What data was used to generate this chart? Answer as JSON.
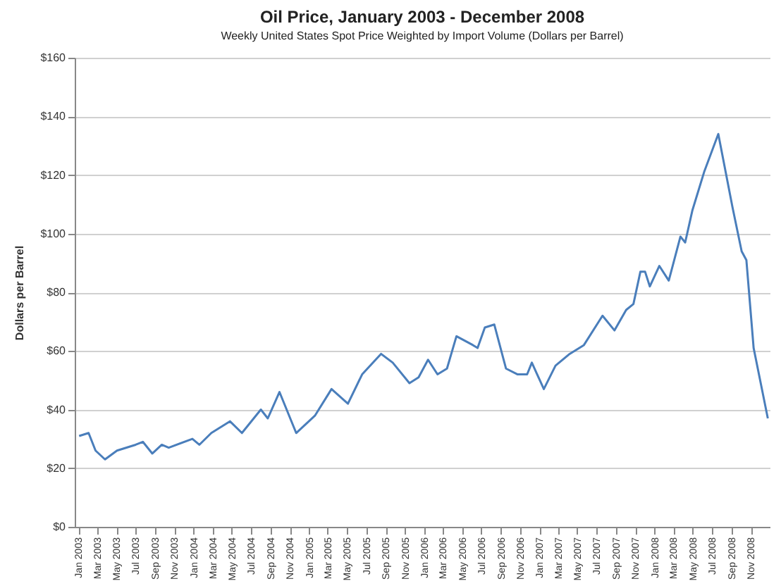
{
  "chart_data": {
    "type": "line",
    "title": "Oil Price, January 2003 - December 2008",
    "subtitle": "Weekly United States Spot Price Weighted by Import Volume (Dollars per Barrel)",
    "ylabel": "Dollars per Barrel",
    "x": [
      "2003-01-03",
      "2003-02-02",
      "2003-02-24",
      "2003-03-26",
      "2003-05-03",
      "2003-07-01",
      "2003-07-24",
      "2003-08-23",
      "2003-09-22",
      "2003-10-14",
      "2003-12-28",
      "2004-01-19",
      "2004-02-26",
      "2004-04-25",
      "2004-06-02",
      "2004-08-01",
      "2004-08-23",
      "2004-09-29",
      "2004-11-21",
      "2005-01-20",
      "2005-03-13",
      "2005-05-04",
      "2005-06-18",
      "2005-08-17",
      "2005-09-23",
      "2005-11-15",
      "2005-12-14",
      "2006-01-13",
      "2006-02-12",
      "2006-03-14",
      "2006-04-13",
      "2006-06-04",
      "2006-06-19",
      "2006-07-12",
      "2006-08-11",
      "2006-09-17",
      "2006-10-24",
      "2006-11-23",
      "2006-12-08",
      "2007-01-15",
      "2007-02-21",
      "2007-04-07",
      "2007-05-22",
      "2007-07-20",
      "2007-08-27",
      "2007-10-03",
      "2007-10-26",
      "2007-11-17",
      "2007-12-02",
      "2007-12-17",
      "2008-01-16",
      "2008-02-15",
      "2008-03-23",
      "2008-04-07",
      "2008-04-30",
      "2008-06-06",
      "2008-07-21",
      "2008-09-04",
      "2008-10-03",
      "2008-10-18",
      "2008-11-10",
      "2008-12-25"
    ],
    "series": [
      {
        "color": "#4a7ebb",
        "values": [
          31,
          32,
          26,
          23,
          26,
          28,
          29,
          25,
          28,
          27,
          30,
          28,
          32,
          36,
          32,
          40,
          37,
          46,
          32,
          38,
          47,
          42,
          52,
          59,
          56,
          49,
          51,
          57,
          52,
          54,
          65,
          62,
          61,
          68,
          69,
          54,
          52,
          52,
          56,
          47,
          55,
          59,
          62,
          72,
          67,
          74,
          76,
          87,
          87,
          82,
          89,
          84,
          99,
          97,
          108,
          121,
          134,
          109,
          94,
          91,
          61,
          37
        ]
      }
    ],
    "xlim": [
      "2002-12-20",
      "2008-12-31"
    ],
    "xticks": [
      {
        "value": "2003-01",
        "label": "Jan 2003"
      },
      {
        "value": "2003-03",
        "label": "Mar 2003"
      },
      {
        "value": "2003-05",
        "label": "May 2003"
      },
      {
        "value": "2003-07",
        "label": "Jul 2003"
      },
      {
        "value": "2003-09",
        "label": "Sep 2003"
      },
      {
        "value": "2003-11",
        "label": "Nov 2003"
      },
      {
        "value": "2004-01",
        "label": "Jan 2004"
      },
      {
        "value": "2004-03",
        "label": "Mar 2004"
      },
      {
        "value": "2004-05",
        "label": "May 2004"
      },
      {
        "value": "2004-07",
        "label": "Jul 2004"
      },
      {
        "value": "2004-09",
        "label": "Sep 2004"
      },
      {
        "value": "2004-11",
        "label": "Nov 2004"
      },
      {
        "value": "2005-01",
        "label": "Jan 2005"
      },
      {
        "value": "2005-03",
        "label": "Mar 2005"
      },
      {
        "value": "2005-05",
        "label": "May 2005"
      },
      {
        "value": "2005-07",
        "label": "Jul 2005"
      },
      {
        "value": "2005-09",
        "label": "Sep 2005"
      },
      {
        "value": "2005-11",
        "label": "Nov 2005"
      },
      {
        "value": "2006-01",
        "label": "Jan 2006"
      },
      {
        "value": "2006-03",
        "label": "Mar 2006"
      },
      {
        "value": "2006-05",
        "label": "May 2006"
      },
      {
        "value": "2006-07",
        "label": "Jul 2006"
      },
      {
        "value": "2006-09",
        "label": "Sep 2006"
      },
      {
        "value": "2006-11",
        "label": "Nov 2006"
      },
      {
        "value": "2007-01",
        "label": "Jan 2007"
      },
      {
        "value": "2007-03",
        "label": "Mar 2007"
      },
      {
        "value": "2007-05",
        "label": "May 2007"
      },
      {
        "value": "2007-07",
        "label": "Jul 2007"
      },
      {
        "value": "2007-09",
        "label": "Sep 2007"
      },
      {
        "value": "2007-11",
        "label": "Nov 2007"
      },
      {
        "value": "2008-01",
        "label": "Jan 2008"
      },
      {
        "value": "2008-03",
        "label": "Mar 2008"
      },
      {
        "value": "2008-05",
        "label": "May 2008"
      },
      {
        "value": "2008-07",
        "label": "Jul 2008"
      },
      {
        "value": "2008-09",
        "label": "Sep 2008"
      },
      {
        "value": "2008-11",
        "label": "Nov 2008"
      }
    ],
    "ylim": [
      0,
      160
    ],
    "yticks": [
      {
        "value": 0,
        "label": "$0"
      },
      {
        "value": 20,
        "label": "$20"
      },
      {
        "value": 40,
        "label": "$40"
      },
      {
        "value": 60,
        "label": "$60"
      },
      {
        "value": 80,
        "label": "$80"
      },
      {
        "value": 100,
        "label": "$100"
      },
      {
        "value": 120,
        "label": "$120"
      },
      {
        "value": 140,
        "label": "$140"
      },
      {
        "value": 160,
        "label": "$160"
      }
    ],
    "grid": "y",
    "legend": false,
    "marker": "none",
    "line_style": "solid"
  }
}
